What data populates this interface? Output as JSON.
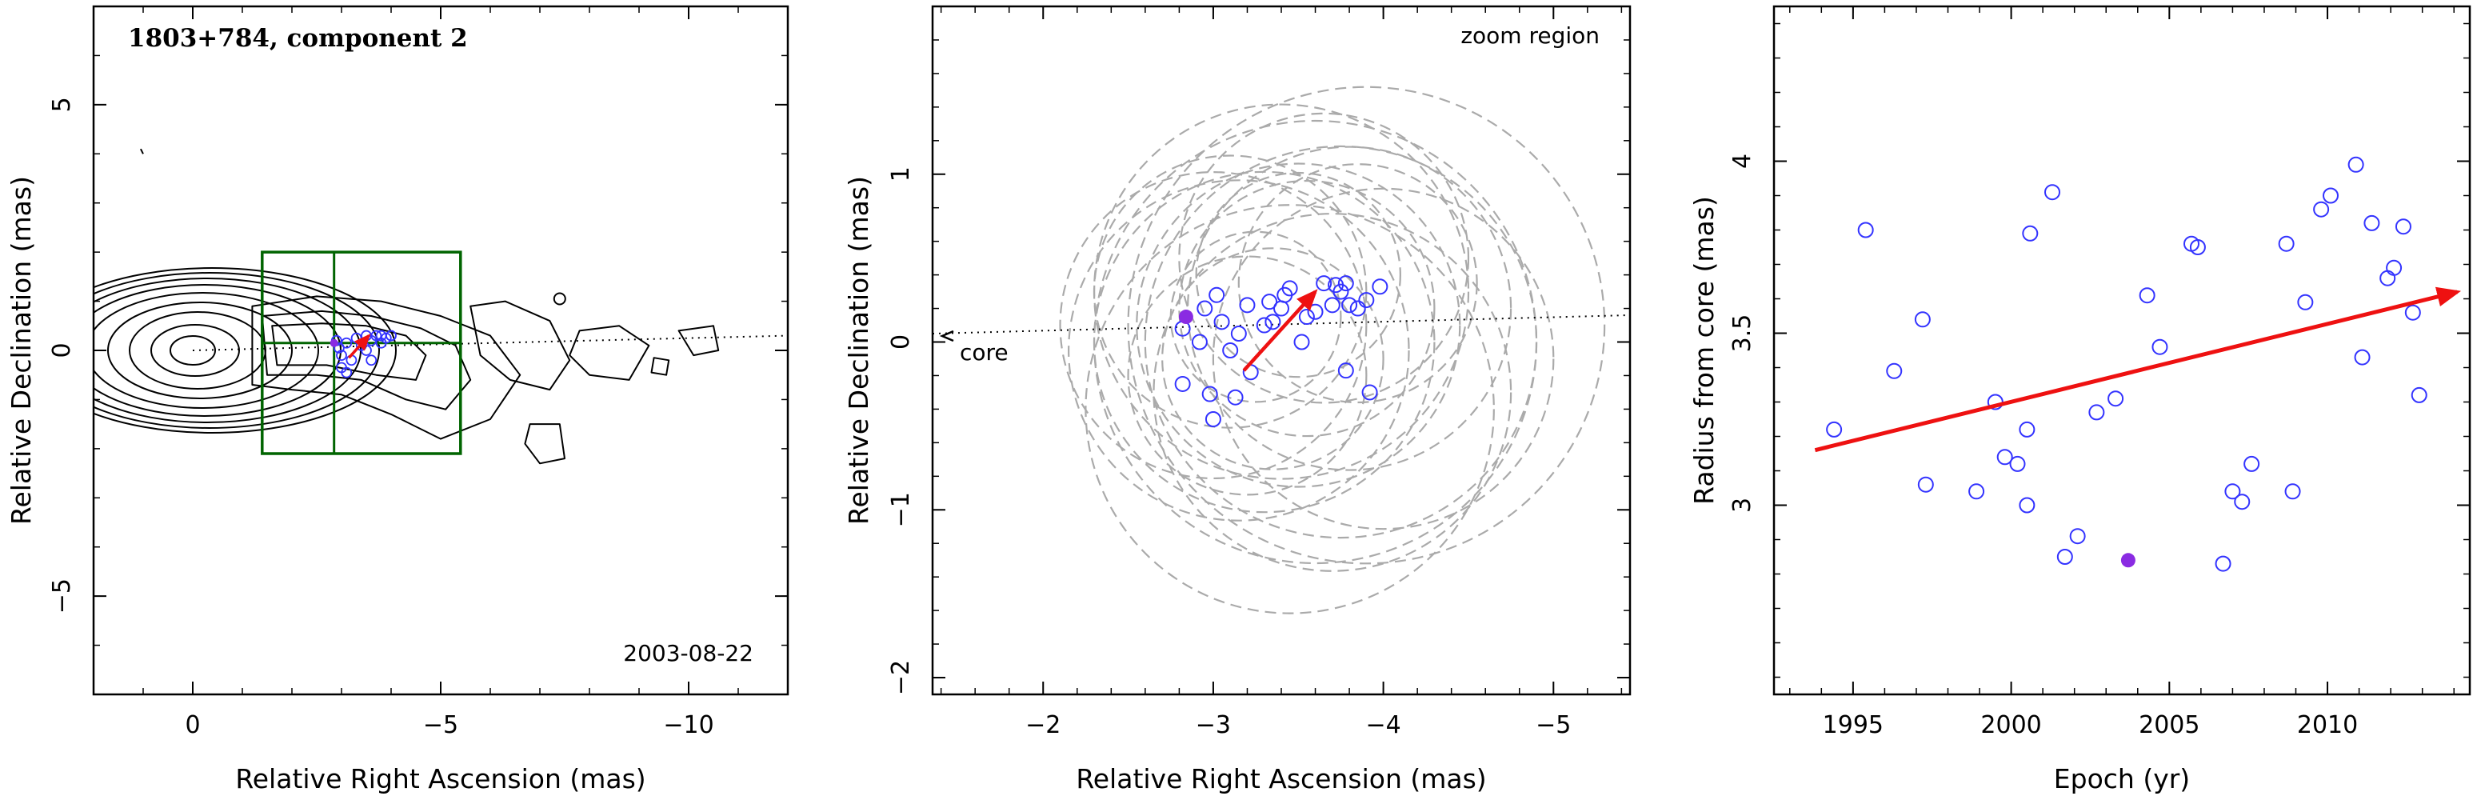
{
  "chart_data": [
    {
      "type": "scatter",
      "title": "1803+784, component 2",
      "xlabel": "Relative Right Ascension (mas)",
      "ylabel": "Relative Declination (mas)",
      "xlim": [
        2.0,
        -12.0
      ],
      "ylim": [
        -7.0,
        7.0
      ],
      "xticks": [
        0,
        -5,
        -10
      ],
      "yticks": [
        -5,
        0,
        5
      ],
      "annotation": "2003-08-22",
      "contour_peak": [
        0,
        0
      ],
      "zoom_box": {
        "x": [
          -1.4,
          -5.4
        ],
        "y": [
          -2.1,
          2.0
        ],
        "mid_x": -2.85,
        "mid_y": 0.15
      },
      "jet_axis_angle": -1.5,
      "points": [
        {
          "x": -2.9,
          "y": 0.2
        },
        {
          "x": -3.1,
          "y": 0.15
        },
        {
          "x": -3.3,
          "y": 0.25
        },
        {
          "x": -3.5,
          "y": 0.3
        },
        {
          "x": -3.7,
          "y": 0.3
        },
        {
          "x": -3.9,
          "y": 0.25
        },
        {
          "x": -3.0,
          "y": -0.1
        },
        {
          "x": -3.2,
          "y": -0.2
        },
        {
          "x": -3.4,
          "y": 0.1
        },
        {
          "x": -3.6,
          "y": 0.2
        },
        {
          "x": -3.8,
          "y": 0.3
        },
        {
          "x": -3.0,
          "y": -0.35
        },
        {
          "x": -3.1,
          "y": -0.45
        },
        {
          "x": -3.6,
          "y": -0.2
        },
        {
          "x": -3.8,
          "y": 0.15
        },
        {
          "x": -4.0,
          "y": 0.3
        },
        {
          "x": -3.5,
          "y": 0.0
        },
        {
          "x": -2.95,
          "y": 0.05
        }
      ],
      "highlight_point": {
        "x": -2.85,
        "y": 0.15
      },
      "arrow": {
        "from": [
          -3.15,
          -0.15
        ],
        "to": [
          -3.55,
          0.3
        ]
      }
    },
    {
      "type": "scatter",
      "xlabel": "Relative Right Ascension (mas)",
      "ylabel": "Relative Declination (mas)",
      "xlim": [
        -1.35,
        -5.45
      ],
      "ylim": [
        -2.1,
        2.0
      ],
      "xticks": [
        -2,
        -3,
        -4,
        -5
      ],
      "yticks": [
        -2,
        -1,
        0,
        1
      ],
      "annotation_top": "zoom region",
      "core_label": "core",
      "points": [
        {
          "x": -2.82,
          "y": 0.08
        },
        {
          "x": -2.95,
          "y": 0.2
        },
        {
          "x": -3.02,
          "y": 0.28
        },
        {
          "x": -3.05,
          "y": 0.12
        },
        {
          "x": -3.1,
          "y": -0.05
        },
        {
          "x": -3.15,
          "y": 0.05
        },
        {
          "x": -3.2,
          "y": 0.22
        },
        {
          "x": -3.22,
          "y": -0.18
        },
        {
          "x": -3.3,
          "y": 0.1
        },
        {
          "x": -3.33,
          "y": 0.24
        },
        {
          "x": -3.4,
          "y": 0.2
        },
        {
          "x": -3.42,
          "y": 0.28
        },
        {
          "x": -3.45,
          "y": 0.32
        },
        {
          "x": -3.52,
          "y": -0.0
        },
        {
          "x": -3.55,
          "y": 0.15
        },
        {
          "x": -3.6,
          "y": 0.18
        },
        {
          "x": -3.65,
          "y": 0.35
        },
        {
          "x": -3.7,
          "y": 0.22
        },
        {
          "x": -3.72,
          "y": 0.34
        },
        {
          "x": -3.75,
          "y": 0.3
        },
        {
          "x": -3.78,
          "y": 0.35
        },
        {
          "x": -3.8,
          "y": 0.22
        },
        {
          "x": -3.85,
          "y": 0.2
        },
        {
          "x": -3.9,
          "y": 0.25
        },
        {
          "x": -3.98,
          "y": 0.33
        },
        {
          "x": -3.78,
          "y": -0.17
        },
        {
          "x": -3.92,
          "y": -0.3
        },
        {
          "x": -2.82,
          "y": -0.25
        },
        {
          "x": -2.98,
          "y": -0.31
        },
        {
          "x": -3.0,
          "y": -0.46
        },
        {
          "x": -3.13,
          "y": -0.33
        },
        {
          "x": -2.92,
          "y": 0.0
        },
        {
          "x": -3.35,
          "y": 0.12
        }
      ],
      "highlight_point": {
        "x": -2.84,
        "y": 0.15
      },
      "arrow": {
        "from": [
          -3.18,
          -0.17
        ],
        "to": [
          -3.6,
          0.3
        ]
      },
      "circles": [
        {
          "x": -3.0,
          "y": 0.1,
          "r": 0.9
        },
        {
          "x": -3.4,
          "y": 0.3,
          "r": 1.1
        },
        {
          "x": -3.6,
          "y": 0.0,
          "r": 1.3
        },
        {
          "x": -3.2,
          "y": -0.2,
          "r": 0.7
        },
        {
          "x": -3.8,
          "y": 0.2,
          "r": 0.95
        },
        {
          "x": -3.5,
          "y": 0.4,
          "r": 0.6
        },
        {
          "x": -3.3,
          "y": 0.0,
          "r": 1.0
        },
        {
          "x": -3.7,
          "y": -0.3,
          "r": 1.05
        },
        {
          "x": -3.9,
          "y": 0.1,
          "r": 1.4
        },
        {
          "x": -3.1,
          "y": 0.3,
          "r": 0.8
        },
        {
          "x": -3.45,
          "y": -0.4,
          "r": 1.2
        },
        {
          "x": -3.65,
          "y": 0.5,
          "r": 0.85
        },
        {
          "x": -3.25,
          "y": 0.15,
          "r": 0.5
        },
        {
          "x": -4.0,
          "y": -0.1,
          "r": 1.0
        },
        {
          "x": -3.55,
          "y": 0.2,
          "r": 0.75
        },
        {
          "x": -3.35,
          "y": -0.1,
          "r": 0.65
        },
        {
          "x": -3.75,
          "y": 0.0,
          "r": 1.15
        },
        {
          "x": -3.15,
          "y": -0.05,
          "r": 1.0
        },
        {
          "x": -3.85,
          "y": 0.35,
          "r": 0.7
        },
        {
          "x": -3.5,
          "y": 0.1,
          "r": 0.95
        }
      ]
    },
    {
      "type": "scatter",
      "xlabel": "Epoch (yr)",
      "ylabel": "Radius from core (mas)",
      "xlim": [
        1992.5,
        2014.5
      ],
      "ylim": [
        2.45,
        4.45
      ],
      "xticks": [
        1995,
        2000,
        2005,
        2010
      ],
      "yticks": [
        3,
        3.5,
        4
      ],
      "points": [
        {
          "x": 1994.4,
          "y": 3.22
        },
        {
          "x": 1995.4,
          "y": 3.8
        },
        {
          "x": 1996.3,
          "y": 3.39
        },
        {
          "x": 1997.2,
          "y": 3.54
        },
        {
          "x": 1997.3,
          "y": 3.06
        },
        {
          "x": 1998.9,
          "y": 3.04
        },
        {
          "x": 1999.5,
          "y": 3.3
        },
        {
          "x": 1999.8,
          "y": 3.14
        },
        {
          "x": 2000.2,
          "y": 3.12
        },
        {
          "x": 2000.5,
          "y": 3.22
        },
        {
          "x": 2000.5,
          "y": 3.0
        },
        {
          "x": 2000.6,
          "y": 3.79
        },
        {
          "x": 2001.3,
          "y": 3.91
        },
        {
          "x": 2001.7,
          "y": 2.85
        },
        {
          "x": 2002.1,
          "y": 2.91
        },
        {
          "x": 2002.7,
          "y": 3.27
        },
        {
          "x": 2003.3,
          "y": 3.31
        },
        {
          "x": 2004.3,
          "y": 3.61
        },
        {
          "x": 2004.7,
          "y": 3.46
        },
        {
          "x": 2005.7,
          "y": 3.76
        },
        {
          "x": 2005.9,
          "y": 3.75
        },
        {
          "x": 2006.7,
          "y": 2.83
        },
        {
          "x": 2007.0,
          "y": 3.04
        },
        {
          "x": 2007.3,
          "y": 3.01
        },
        {
          "x": 2007.6,
          "y": 3.12
        },
        {
          "x": 2008.7,
          "y": 3.76
        },
        {
          "x": 2008.9,
          "y": 3.04
        },
        {
          "x": 2009.3,
          "y": 3.59
        },
        {
          "x": 2009.8,
          "y": 3.86
        },
        {
          "x": 2010.1,
          "y": 3.9
        },
        {
          "x": 2010.9,
          "y": 3.99
        },
        {
          "x": 2011.1,
          "y": 3.43
        },
        {
          "x": 2011.4,
          "y": 3.82
        },
        {
          "x": 2011.9,
          "y": 3.66
        },
        {
          "x": 2012.1,
          "y": 3.69
        },
        {
          "x": 2012.4,
          "y": 3.81
        },
        {
          "x": 2012.7,
          "y": 3.56
        },
        {
          "x": 2012.9,
          "y": 3.32
        }
      ],
      "highlight_point": {
        "x": 2003.7,
        "y": 2.84
      },
      "arrow": {
        "from": [
          1993.8,
          3.16
        ],
        "to": [
          2014.1,
          3.62
        ]
      }
    }
  ],
  "colors": {
    "open_marker": "#3333ff",
    "highlight": "#8a2be2",
    "arrow": "#ee1111",
    "box": "#006400",
    "circles": "#aaaaaa"
  }
}
